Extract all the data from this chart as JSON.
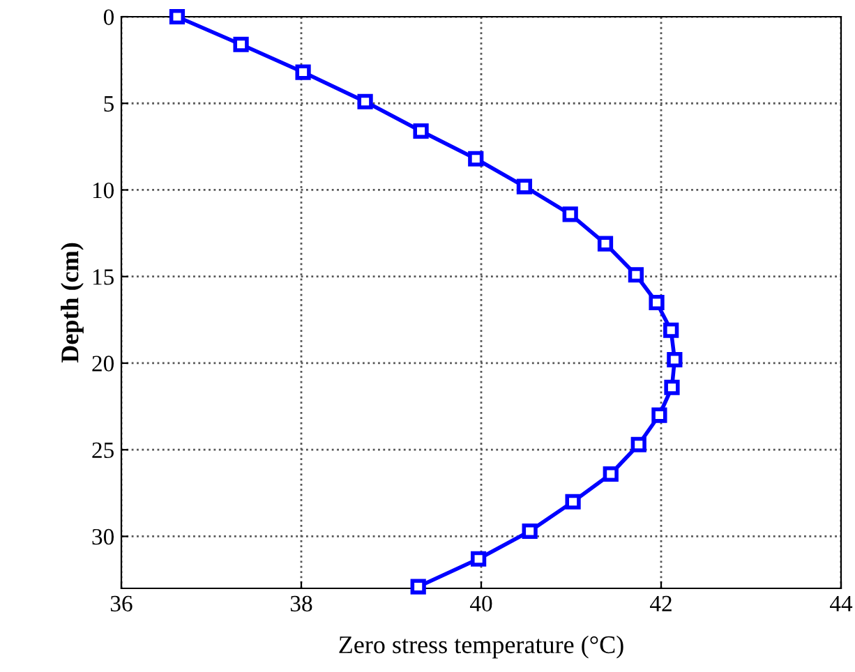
{
  "chart_data": {
    "type": "line",
    "xlabel": "Zero stress temperature (°C)",
    "ylabel": "Depth (cm)",
    "xlim": [
      36,
      44
    ],
    "xticks": [
      36,
      38,
      40,
      42,
      44
    ],
    "ylim": [
      33,
      0
    ],
    "yticks": [
      0,
      5,
      10,
      15,
      20,
      25,
      30
    ],
    "grid": true,
    "marker": "square",
    "line_style": "solid",
    "series": [
      {
        "color": "#0000ff",
        "x": [
          36.62,
          37.33,
          38.02,
          38.71,
          39.33,
          39.94,
          40.48,
          40.99,
          41.38,
          41.72,
          41.95,
          42.11,
          42.15,
          42.12,
          41.98,
          41.75,
          41.44,
          41.02,
          40.54,
          39.97,
          39.3
        ],
        "values": [
          0,
          1.6,
          3.2,
          4.9,
          6.6,
          8.2,
          9.8,
          11.4,
          13.1,
          14.9,
          16.5,
          18.1,
          19.8,
          21.4,
          23.0,
          24.7,
          26.4,
          28.0,
          29.7,
          31.3,
          32.9
        ]
      }
    ]
  }
}
